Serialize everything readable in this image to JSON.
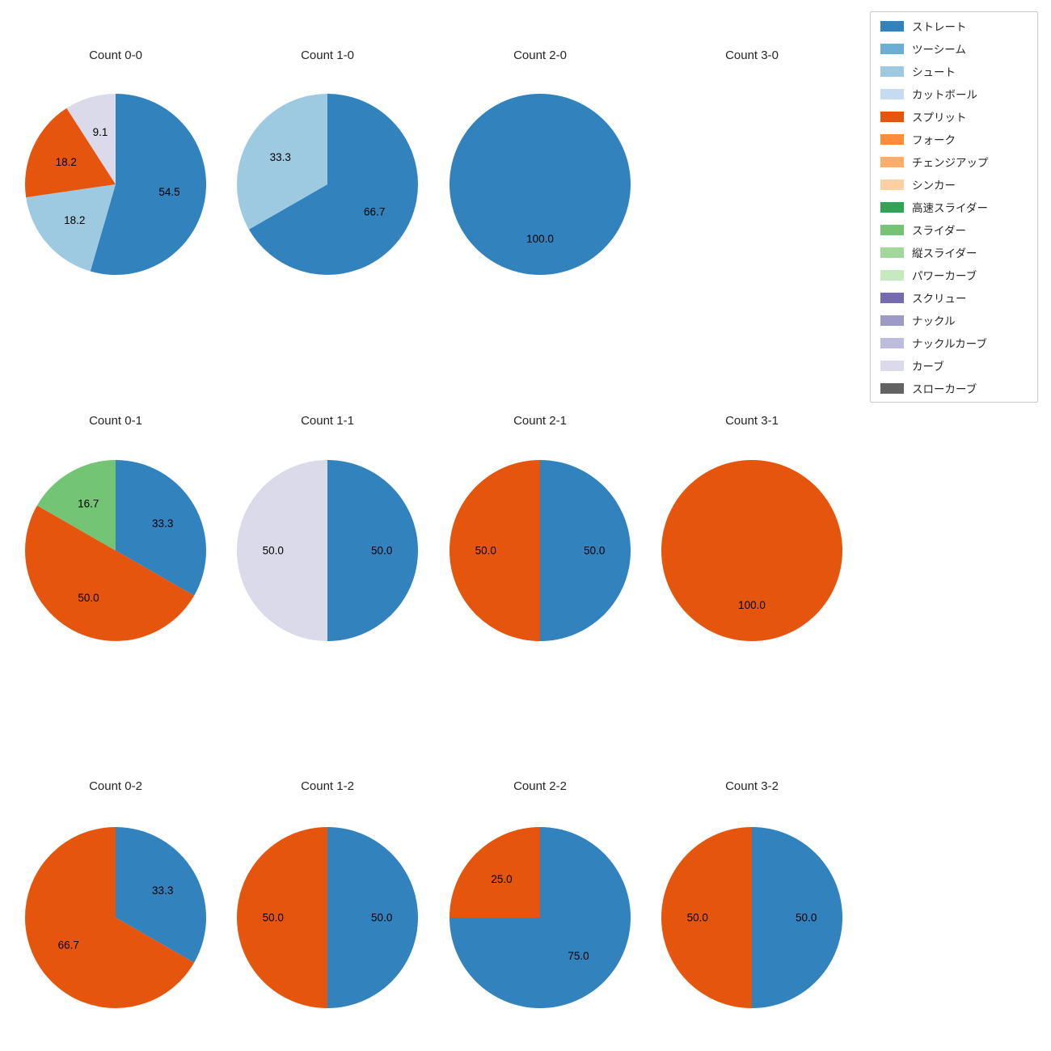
{
  "figure": {
    "background": "#ffffff",
    "text_color": "#262626"
  },
  "legend": {
    "items": [
      {
        "label": "ストレート",
        "color": "#3182bd"
      },
      {
        "label": "ツーシーム",
        "color": "#6baed6"
      },
      {
        "label": "シュート",
        "color": "#9ecae1"
      },
      {
        "label": "カットボール",
        "color": "#c6dbef"
      },
      {
        "label": "スプリット",
        "color": "#e6550d"
      },
      {
        "label": "フォーク",
        "color": "#fd8d3c"
      },
      {
        "label": "チェンジアップ",
        "color": "#fdae6b"
      },
      {
        "label": "シンカー",
        "color": "#fdd0a2"
      },
      {
        "label": "高速スライダー",
        "color": "#31a354"
      },
      {
        "label": "スライダー",
        "color": "#74c476"
      },
      {
        "label": "縦スライダー",
        "color": "#a1d99b"
      },
      {
        "label": "パワーカーブ",
        "color": "#c7e9c0"
      },
      {
        "label": "スクリュー",
        "color": "#756bb1"
      },
      {
        "label": "ナックル",
        "color": "#9e9ac8"
      },
      {
        "label": "ナックルカーブ",
        "color": "#bcbddc"
      },
      {
        "label": "カーブ",
        "color": "#dadaeb"
      },
      {
        "label": "スローカーブ",
        "color": "#636363"
      }
    ]
  },
  "chart_data": {
    "type": "pie",
    "start_angle": 90,
    "direction": "clockwise",
    "value_unit": "percent",
    "label_position_radius_fraction": 0.6,
    "grid": {
      "rows": 3,
      "cols": 4
    },
    "charts": [
      {
        "title": "Count 0-0",
        "slices": [
          {
            "label": "ストレート",
            "value": 54.5
          },
          {
            "label": "シュート",
            "value": 18.2
          },
          {
            "label": "スプリット",
            "value": 18.2
          },
          {
            "label": "カーブ",
            "value": 9.1
          }
        ]
      },
      {
        "title": "Count 1-0",
        "slices": [
          {
            "label": "ストレート",
            "value": 66.7
          },
          {
            "label": "シュート",
            "value": 33.3
          }
        ]
      },
      {
        "title": "Count 2-0",
        "slices": [
          {
            "label": "ストレート",
            "value": 100.0
          }
        ]
      },
      {
        "title": "Count 3-0",
        "slices": []
      },
      {
        "title": "Count 0-1",
        "slices": [
          {
            "label": "ストレート",
            "value": 33.3
          },
          {
            "label": "スプリット",
            "value": 50.0
          },
          {
            "label": "スライダー",
            "value": 16.7
          }
        ]
      },
      {
        "title": "Count 1-1",
        "slices": [
          {
            "label": "ストレート",
            "value": 50.0
          },
          {
            "label": "カーブ",
            "value": 50.0
          }
        ]
      },
      {
        "title": "Count 2-1",
        "slices": [
          {
            "label": "ストレート",
            "value": 50.0
          },
          {
            "label": "スプリット",
            "value": 50.0
          }
        ]
      },
      {
        "title": "Count 3-1",
        "slices": [
          {
            "label": "スプリット",
            "value": 100.0
          }
        ]
      },
      {
        "title": "Count 0-2",
        "slices": [
          {
            "label": "ストレート",
            "value": 33.3
          },
          {
            "label": "スプリット",
            "value": 66.7
          }
        ]
      },
      {
        "title": "Count 1-2",
        "slices": [
          {
            "label": "ストレート",
            "value": 50.0
          },
          {
            "label": "スプリット",
            "value": 50.0
          }
        ]
      },
      {
        "title": "Count 2-2",
        "slices": [
          {
            "label": "ストレート",
            "value": 75.0
          },
          {
            "label": "スプリット",
            "value": 25.0
          }
        ]
      },
      {
        "title": "Count 3-2",
        "slices": [
          {
            "label": "ストレート",
            "value": 50.0
          },
          {
            "label": "スプリット",
            "value": 50.0
          }
        ]
      }
    ]
  }
}
